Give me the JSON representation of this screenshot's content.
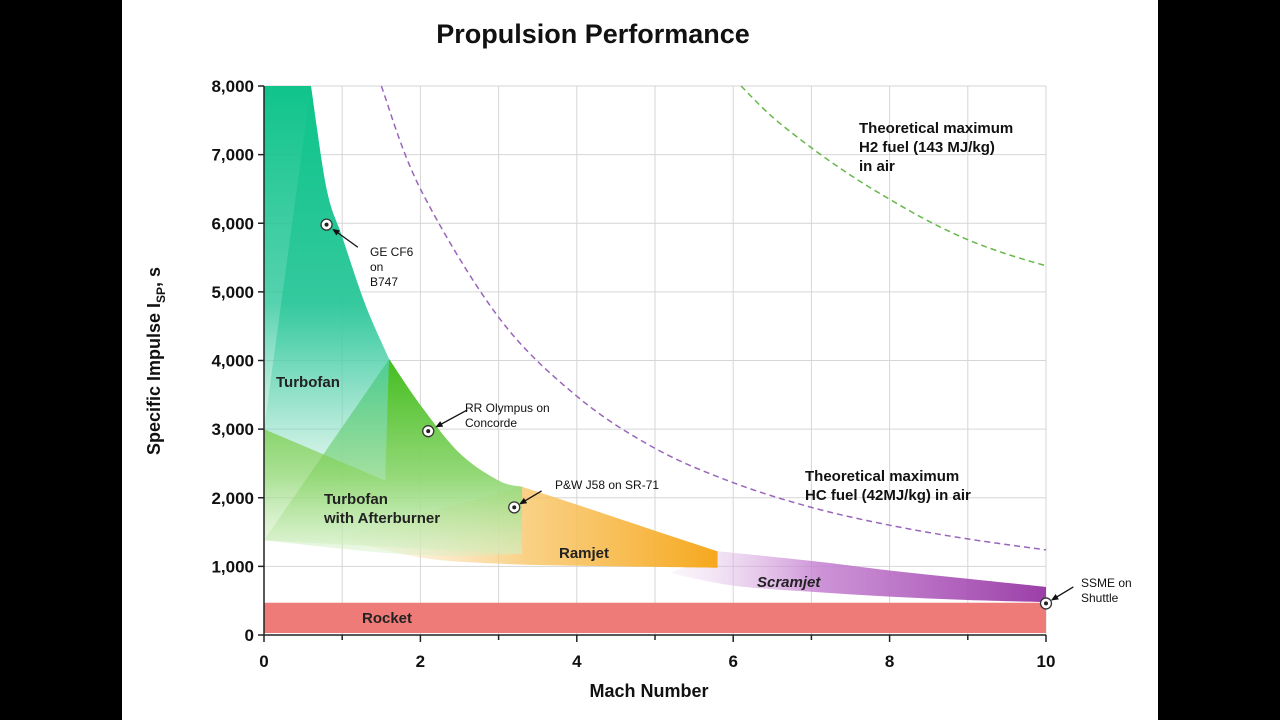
{
  "chart_data": {
    "type": "area",
    "title": "Propulsion Performance",
    "xlabel": "Mach Number",
    "ylabel": "Specific Impulse I",
    "ylabel_subscript": "SP",
    "ylabel_suffix": ", s",
    "xlim": [
      0,
      10
    ],
    "ylim": [
      0,
      8000
    ],
    "x_ticks": [
      "0",
      "2",
      "4",
      "6",
      "8",
      "10"
    ],
    "y_ticks": [
      "0",
      "1,000",
      "2,000",
      "3,000",
      "4,000",
      "5,000",
      "6,000",
      "7,000",
      "8,000"
    ],
    "grid": true,
    "regions": [
      {
        "name": "Rocket",
        "color": "#ee7b78",
        "upper": [
          [
            0,
            470
          ],
          [
            10,
            470
          ]
        ],
        "lower": [
          [
            0,
            30
          ],
          [
            10,
            30
          ]
        ]
      },
      {
        "name": "Scramjet",
        "color": "#9b3fa8",
        "upper": [
          [
            5.8,
            1220
          ],
          [
            7,
            1080
          ],
          [
            8,
            940
          ],
          [
            9,
            820
          ],
          [
            10,
            700
          ]
        ],
        "lower": [
          [
            5.2,
            900
          ],
          [
            6,
            720
          ],
          [
            7,
            630
          ],
          [
            8,
            560
          ],
          [
            9,
            510
          ],
          [
            10,
            480
          ]
        ]
      },
      {
        "name": "Ramjet",
        "color": "#f5a623",
        "upper": [
          [
            3.3,
            2160
          ],
          [
            4,
            1900
          ],
          [
            5,
            1520
          ],
          [
            5.8,
            1220
          ]
        ],
        "lower": [
          [
            0.9,
            1420
          ],
          [
            2,
            1130
          ],
          [
            3,
            1040
          ],
          [
            4,
            1010
          ],
          [
            5.8,
            980
          ]
        ]
      },
      {
        "name": "Turbofan with Afterburner",
        "color": "#4cbf2e",
        "upper": [
          [
            1.6,
            4020
          ],
          [
            2,
            3350
          ],
          [
            2.5,
            2650
          ],
          [
            3,
            2250
          ],
          [
            3.3,
            2160
          ]
        ],
        "lower": [
          [
            0,
            1380
          ],
          [
            1.5,
            1200
          ],
          [
            2.5,
            1150
          ],
          [
            3.3,
            1180
          ]
        ]
      },
      {
        "name": "Turbofan",
        "color": "#14c48a",
        "upper": [
          [
            0.6,
            8000
          ],
          [
            0.8,
            6500
          ],
          [
            1,
            5800
          ],
          [
            1.3,
            4800
          ],
          [
            1.6,
            4020
          ]
        ],
        "lower": [
          [
            0,
            3000
          ],
          [
            0.6,
            2700
          ],
          [
            1.2,
            2400
          ],
          [
            1.55,
            2250
          ]
        ]
      }
    ],
    "engines": [
      {
        "label": [
          "GE CF6",
          "on",
          "B747"
        ],
        "x": 0.8,
        "y": 5980
      },
      {
        "label": [
          "RR Olympus on",
          "Concorde"
        ],
        "x": 2.1,
        "y": 2970
      },
      {
        "label": [
          "P&W J58 on SR-71"
        ],
        "x": 3.2,
        "y": 1860
      },
      {
        "label": [
          "SSME on",
          "Shuttle"
        ],
        "x": 10,
        "y": 460
      }
    ],
    "theoretical_curves": [
      {
        "name": "Theoretical maximum HC fuel (42MJ/kg) in air",
        "color": "#9966bb",
        "label": [
          "Theoretical maximum",
          "HC fuel (42MJ/kg) in air"
        ],
        "points": [
          [
            1.5,
            8000
          ],
          [
            2,
            6500
          ],
          [
            3,
            4630
          ],
          [
            4,
            3480
          ],
          [
            5,
            2720
          ],
          [
            6,
            2220
          ],
          [
            7,
            1860
          ],
          [
            8,
            1600
          ],
          [
            9,
            1400
          ],
          [
            10,
            1240
          ]
        ]
      },
      {
        "name": "Theoretical maximum H2 fuel (143 MJ/kg) in air",
        "color": "#66b84a",
        "label": [
          "Theoretical maximum",
          "H2 fuel (143 MJ/kg)",
          "in air"
        ],
        "points": [
          [
            6.1,
            8000
          ],
          [
            6.5,
            7550
          ],
          [
            7,
            7100
          ],
          [
            7.5,
            6700
          ],
          [
            8,
            6350
          ],
          [
            8.5,
            6030
          ],
          [
            9,
            5760
          ],
          [
            9.5,
            5550
          ],
          [
            10,
            5380
          ]
        ]
      }
    ],
    "region_labels": {
      "turbofan": "Turbofan",
      "afterburner": [
        "Turbofan",
        "with Afterburner"
      ],
      "ramjet": "Ramjet",
      "scramjet": "Scramjet",
      "rocket": "Rocket"
    }
  }
}
